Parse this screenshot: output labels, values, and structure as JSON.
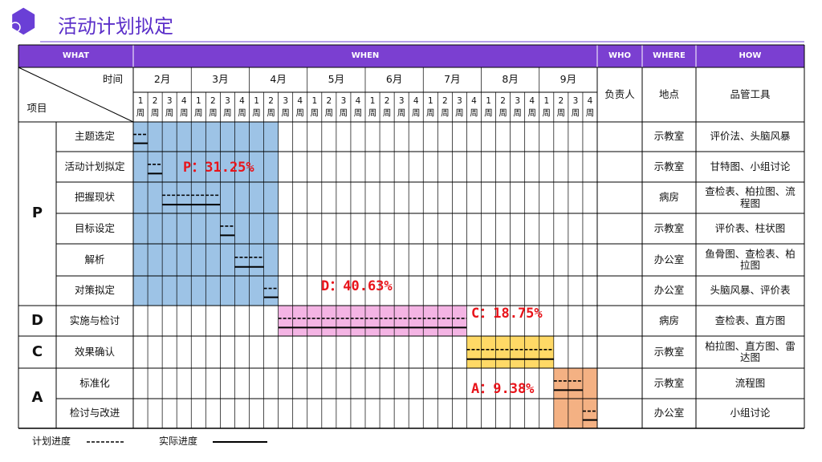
{
  "header": {
    "title": "活动计划拟定"
  },
  "columns": {
    "what": "WHAT",
    "when": "WHEN",
    "who": "WHO",
    "where": "WHERE",
    "how": "HOW"
  },
  "corner": {
    "time": "时间",
    "item": "项目"
  },
  "sub_headers": {
    "who": "负责人",
    "where": "地点",
    "how": "品管工具"
  },
  "months": [
    "2月",
    "3月",
    "4月",
    "5月",
    "6月",
    "7月",
    "8月",
    "9月"
  ],
  "week_labels": [
    "1周",
    "2周",
    "3周",
    "4周"
  ],
  "phases": [
    {
      "label": "P",
      "percent": "P：31.25%",
      "color": "#9dc3e6",
      "tasks": [
        {
          "name": "主题选定",
          "where": "示教室",
          "how": "评价法、头脑风暴",
          "plan": [
            0,
            0
          ],
          "actual": [
            0,
            0
          ]
        },
        {
          "name": "活动计划拟定",
          "where": "示教室",
          "how": "甘特图、小组讨论",
          "plan": [
            1,
            1
          ],
          "actual": [
            1,
            1
          ]
        },
        {
          "name": "把握现状",
          "where": "病房",
          "how": "查检表、柏拉图、流程图",
          "plan": [
            2,
            5
          ],
          "actual": [
            2,
            5
          ]
        },
        {
          "name": "目标设定",
          "where": "示教室",
          "how": "评价表、柱状图",
          "plan": [
            6,
            6
          ],
          "actual": [
            6,
            6
          ]
        },
        {
          "name": "解析",
          "where": "办公室",
          "how": "鱼骨图、查检表、柏拉图",
          "plan": [
            7,
            8
          ],
          "actual": [
            7,
            8
          ]
        },
        {
          "name": "对策拟定",
          "where": "办公室",
          "how": "头脑风暴、评价表",
          "plan": [
            9,
            9
          ],
          "actual": [
            9,
            9
          ]
        }
      ]
    },
    {
      "label": "D",
      "percent": "D：40.63%",
      "color": "#f4b4e4",
      "tasks": [
        {
          "name": "实施与检讨",
          "where": "病房",
          "how": "查检表、直方图",
          "plan": [
            10,
            22
          ],
          "actual": [
            10,
            22
          ]
        }
      ]
    },
    {
      "label": "C",
      "percent": "C：18.75%",
      "color": "#ffd966",
      "tasks": [
        {
          "name": "效果确认",
          "where": "示教室",
          "how": "柏拉图、直方图、雷达图",
          "plan": [
            23,
            28
          ],
          "actual": [
            23,
            28
          ]
        }
      ]
    },
    {
      "label": "A",
      "percent": "A：9.38%",
      "color": "#f4b183",
      "tasks": [
        {
          "name": "标准化",
          "where": "示教室",
          "how": "流程图",
          "plan": [
            29,
            30
          ],
          "actual": [
            29,
            30
          ]
        },
        {
          "name": "检讨与改进",
          "where": "办公室",
          "how": "小组讨论",
          "plan": [
            31,
            31
          ],
          "actual": [
            31,
            31
          ]
        }
      ]
    }
  ],
  "legend": {
    "plan": "计划进度",
    "actual": "实际进度"
  }
}
